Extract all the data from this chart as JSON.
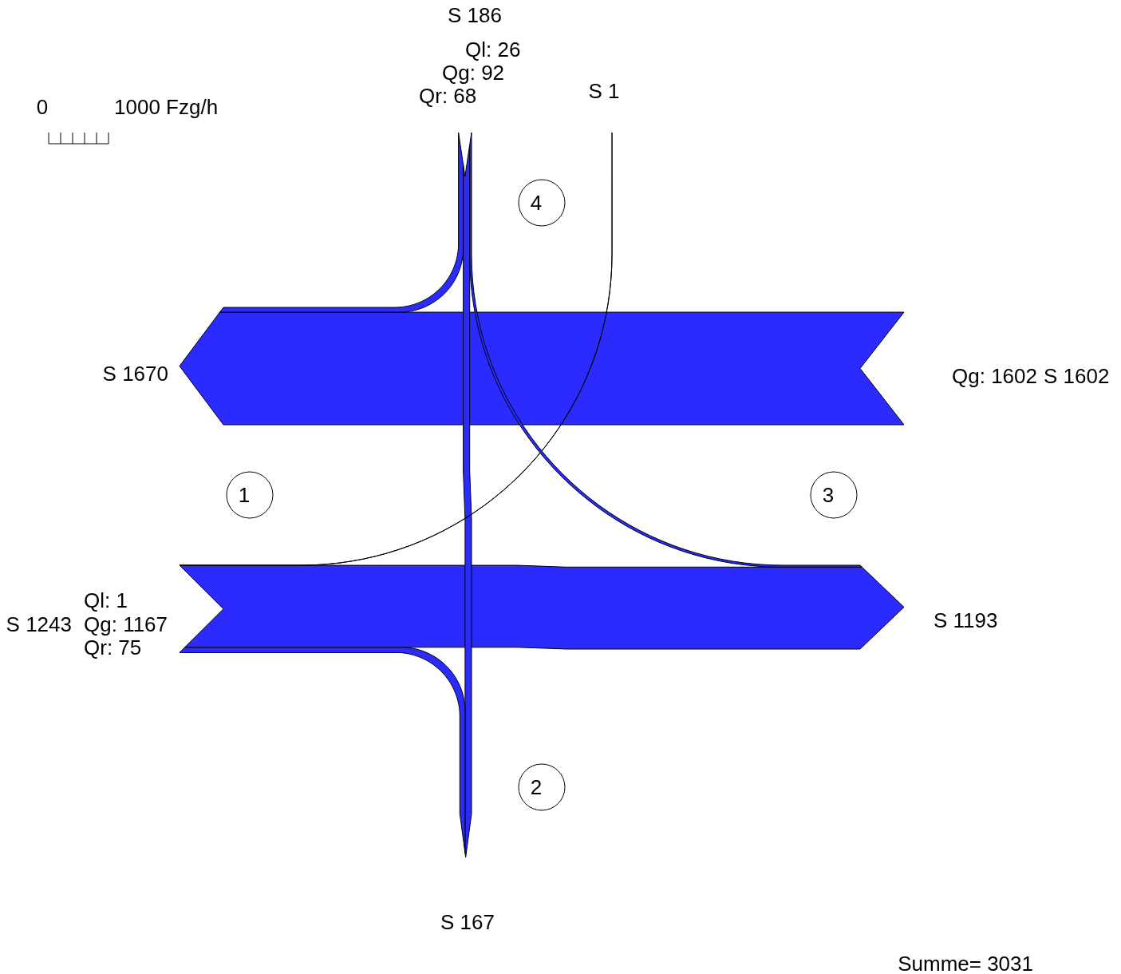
{
  "chart_data": {
    "type": "other",
    "categories": [
      "1",
      "2",
      "3",
      "4"
    ],
    "series": [
      {
        "color": "#2b2bff",
        "values": [
          1,
          null,
          null,
          26
        ],
        "value_labels": [
          "Ql: 1",
          null,
          null,
          "Ql: 26"
        ]
      },
      {
        "color": "#2b2bff",
        "values": [
          1167,
          null,
          1602,
          92
        ],
        "value_labels": [
          "Qg: 1167",
          null,
          "Qg: 1602",
          "Qg: 92"
        ]
      },
      {
        "color": "#2b2bff",
        "values": [
          75,
          null,
          null,
          68
        ],
        "value_labels": [
          "Qr: 75",
          null,
          null,
          "Qr: 68"
        ]
      }
    ],
    "totals": [
      "S 1243",
      null,
      "S 1602",
      "S 186"
    ],
    "annotations": [
      "0",
      "1000 Fzg/h",
      {
        "text": "S 1670",
        "x": "1"
      },
      {
        "text": "S 167",
        "x": "2"
      },
      {
        "text": "S 1193",
        "x": "3"
      },
      {
        "text": "S 1",
        "x": "4"
      },
      "Summe= 3031"
    ]
  }
}
